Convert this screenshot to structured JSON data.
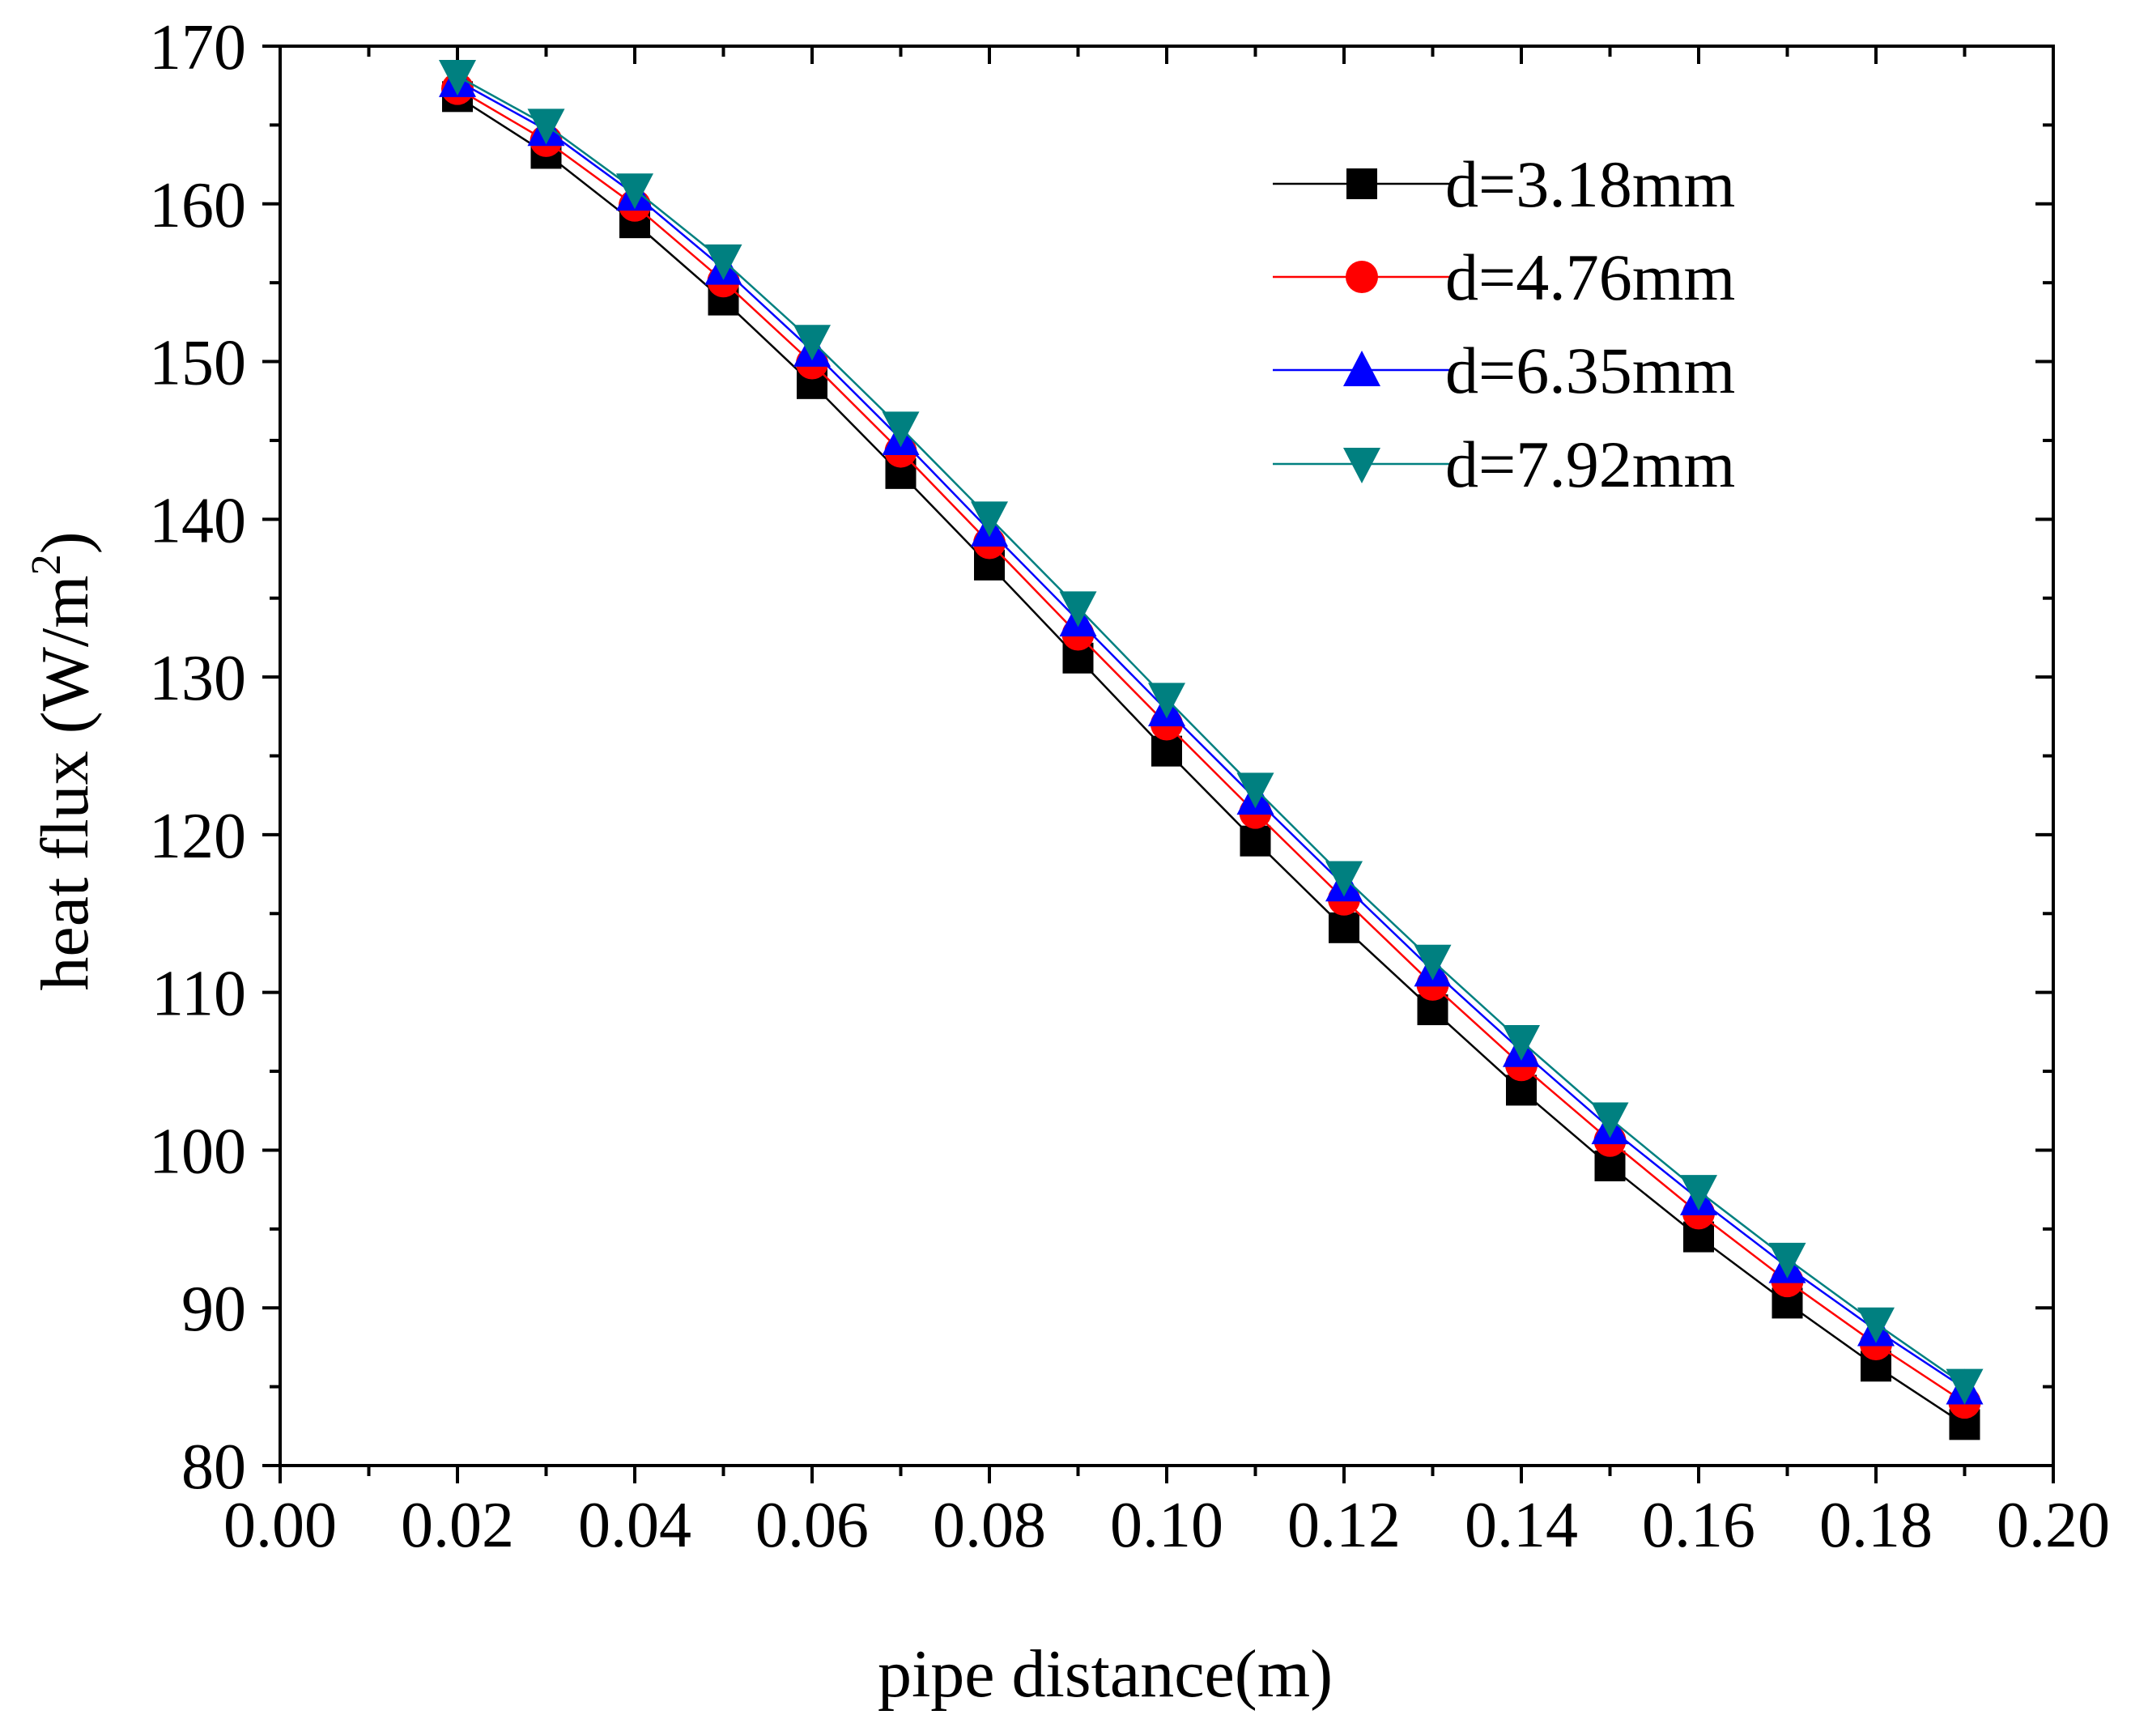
{
  "chart_data": {
    "type": "line",
    "title": "",
    "xlabel": "pipe distance(m)",
    "ylabel_main": "heat flux (W/m",
    "ylabel_sup": "2",
    "ylabel_close": ")",
    "xlim": [
      0.0,
      0.2
    ],
    "ylim": [
      80,
      170
    ],
    "x_ticks": [
      0.0,
      0.02,
      0.04,
      0.06,
      0.08,
      0.1,
      0.12,
      0.14,
      0.16,
      0.18,
      0.2
    ],
    "x_tick_labels": [
      "0.00",
      "0.02",
      "0.04",
      "0.06",
      "0.08",
      "0.10",
      "0.12",
      "0.14",
      "0.16",
      "0.18",
      "0.20"
    ],
    "y_ticks": [
      80,
      90,
      100,
      110,
      120,
      130,
      140,
      150,
      160,
      170
    ],
    "y_tick_labels": [
      "80",
      "90",
      "100",
      "110",
      "120",
      "130",
      "140",
      "150",
      "160",
      "170"
    ],
    "grid": false,
    "legend_position": "top-right",
    "x": [
      0.02,
      0.03,
      0.04,
      0.05,
      0.06,
      0.07,
      0.08,
      0.09,
      0.1,
      0.11,
      0.12,
      0.13,
      0.14,
      0.15,
      0.16,
      0.17,
      0.18,
      0.19
    ],
    "series": [
      {
        "name": "d=3.18mm",
        "color": "#000000",
        "marker": "square",
        "values": [
          166.8,
          163.2,
          158.8,
          153.9,
          148.6,
          142.9,
          137.1,
          131.2,
          125.3,
          119.6,
          114.1,
          108.9,
          103.8,
          99.0,
          94.5,
          90.3,
          86.3,
          82.6
        ]
      },
      {
        "name": "d=4.76mm",
        "color": "#ff0000",
        "marker": "circle",
        "values": [
          167.3,
          164.0,
          159.9,
          155.1,
          149.9,
          144.3,
          138.5,
          132.7,
          127.0,
          121.4,
          115.9,
          110.5,
          105.4,
          100.6,
          96.0,
          91.7,
          87.7,
          84.0
        ]
      },
      {
        "name": "d=6.35mm",
        "color": "#0000ff",
        "marker": "triangle-up",
        "values": [
          167.8,
          164.7,
          160.6,
          155.9,
          150.7,
          145.1,
          139.3,
          133.6,
          127.9,
          122.3,
          116.8,
          111.4,
          106.3,
          101.4,
          96.9,
          92.6,
          88.6,
          84.9
        ]
      },
      {
        "name": "d=7.92mm",
        "color": "#008080",
        "marker": "triangle-down",
        "values": [
          168.1,
          165.0,
          160.9,
          156.4,
          151.3,
          145.8,
          140.1,
          134.4,
          128.6,
          122.9,
          117.3,
          112.0,
          106.9,
          102.0,
          97.4,
          93.1,
          89.0,
          85.1
        ]
      }
    ]
  }
}
